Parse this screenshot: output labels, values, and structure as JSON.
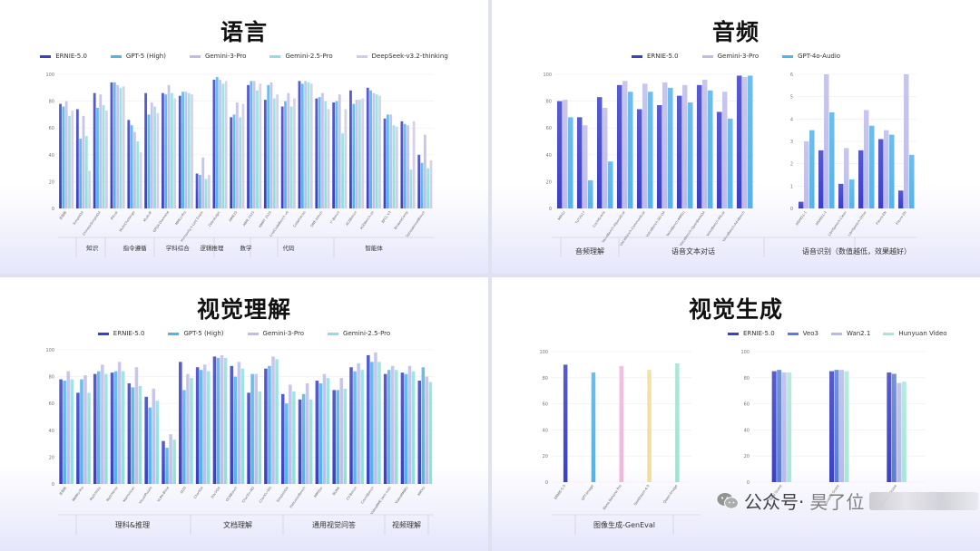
{
  "watermark": {
    "text": "公众号·",
    "trail": "昊了位",
    "icon": "wechat-icon"
  },
  "colors": {
    "ernie": "#3b3fc7",
    "gpt5": "#52b3e8",
    "gemini3": "#bfbcea",
    "gemini25": "#8fe0da",
    "deepseek": "#cfcce8",
    "gpt4o": "#55b3e8",
    "veo3": "#5a7fd2",
    "wan": "#b9b9ec",
    "hunyuan": "#a9e6d8"
  },
  "panels": {
    "language": {
      "title": "语言",
      "chart_data": {
        "type": "bar",
        "ylim": [
          0,
          100
        ],
        "yticks": [
          0,
          20,
          40,
          60,
          80,
          100
        ],
        "categories": [
          "多指标",
          "SimpleQA",
          "ChineseSimpleQA",
          "IFEval",
          "MultiChallenge",
          "Multi-IF",
          "GPQA-Diamond",
          "MMLU-Pro",
          "Humanity's Last Exam",
          "ZebraLogic",
          "AIME25",
          "AIME 2025",
          "HMMT 2025",
          "LiveCodeBench v6",
          "CodeForces",
          "SWE-bench",
          "τ²-Bench",
          "ACEBench",
          "ACEBench-zh",
          "BFCL V3",
          "BrowseComp",
          "SpreadsheetBench"
        ],
        "series": [
          {
            "name": "ERNIE-5.0",
            "color_key": "ernie",
            "values": [
              78,
              74,
              86,
              94,
              66,
              86,
              86,
              84,
              26,
              96,
              68,
              92,
              81,
              76,
              95,
              82,
              79,
              88,
              90,
              67,
              65,
              40
            ]
          },
          {
            "name": "GPT-5 (High)",
            "color_key": "gpt5",
            "values": [
              76,
              52,
              75,
              94,
              62,
              70,
              85,
              87,
              25,
              98,
              70,
              95,
              92,
              80,
              93,
              83,
              80,
              78,
              88,
              70,
              63,
              34
            ]
          },
          {
            "name": "Gemini-3-Pro",
            "color_key": "gemini3",
            "values": [
              80,
              69,
              85,
              92,
              57,
              79,
              92,
              87,
              38,
              96,
              79,
              95,
              94,
              86,
              95,
              86,
              85,
              81,
              86,
              70,
              62,
              55
            ]
          },
          {
            "name": "Gemini-2.5-Pro",
            "color_key": "gemini25",
            "values": [
              69,
              54,
              77,
              90,
              50,
              76,
              86,
              86,
              22,
              93,
              68,
              88,
              82,
              76,
              94,
              80,
              56,
              81,
              85,
              62,
              29,
              30
            ]
          },
          {
            "name": "DeepSeek-v3.2-thinking",
            "color_key": "deepseek",
            "values": [
              73,
              28,
              73,
              91,
              42,
              71,
              82,
              85,
              25,
              95,
              78,
              93,
              85,
              82,
              93,
              74,
              74,
              82,
              84,
              61,
              65,
              36
            ]
          }
        ],
        "group_labels": [
          {
            "label": "知识",
            "from": 1,
            "to": 2
          },
          {
            "label": "指令遵循",
            "from": 3,
            "to": 5
          },
          {
            "label": "学科综合",
            "from": 6,
            "to": 7
          },
          {
            "label": "逻辑推理",
            "from": 8,
            "to": 9
          },
          {
            "label": "数学",
            "from": 10,
            "to": 11
          },
          {
            "label": "代码",
            "from": 12,
            "to": 14
          },
          {
            "label": "智能体",
            "from": 15,
            "to": 21
          }
        ]
      }
    },
    "audio": {
      "title": "音频",
      "chart_data": [
        {
          "type": "bar",
          "ylim": [
            0,
            100
          ],
          "yticks": [
            0,
            20,
            40,
            60,
            80,
            100
          ],
          "categories": [
            "MMAU",
            "TUT2017",
            "CochlScene",
            "VoiceBench-AlpacaEval",
            "VoiceBench-CommonEval",
            "VoiceBench-SD-QA",
            "VoiceBench-MMSU",
            "VoiceBench-OpenBookQA",
            "VoiceBench-IFEval",
            "VoiceBench-AdvBench"
          ],
          "series": [
            {
              "name": "ERNIE-5.0",
              "color_key": "ernie",
              "values": [
                80,
                68,
                83,
                92,
                74,
                77,
                84,
                92,
                72,
                99
              ]
            },
            {
              "name": "Gemini-3-Pro",
              "color_key": "gemini3",
              "values": [
                81,
                62,
                75,
                95,
                93,
                94,
                92,
                96,
                87,
                98
              ]
            },
            {
              "name": "GPT-4o-Audio",
              "color_key": "gpt4o",
              "values": [
                68,
                21,
                35,
                87,
                87,
                90,
                79,
                88,
                67,
                99
              ]
            }
          ]
        },
        {
          "type": "bar",
          "ylim": [
            0,
            6
          ],
          "yticks": [
            0,
            1,
            2,
            3,
            4,
            5,
            6
          ],
          "categories": [
            "AISHELL-1",
            "AISHELL-2",
            "LibriSpeech-Clean",
            "LibriSpeech-Other",
            "Fleurs-EN",
            "Fleurs-ZH"
          ],
          "series": [
            {
              "name": "ERNIE-5.0",
              "color_key": "ernie",
              "values": [
                0.3,
                2.6,
                1.1,
                2.6,
                3.1,
                0.8
              ]
            },
            {
              "name": "Gemini-3-Pro",
              "color_key": "gemini3",
              "values": [
                3.0,
                6.0,
                2.7,
                4.4,
                3.5,
                6.0
              ]
            },
            {
              "name": "GPT-4o-Audio",
              "color_key": "gpt4o",
              "values": [
                3.5,
                4.3,
                1.3,
                3.7,
                3.3,
                2.4
              ]
            }
          ]
        }
      ],
      "group_labels": [
        {
          "label": "音频理解"
        },
        {
          "label": "语音文本对话"
        },
        {
          "label": "语音识别（数值越低，效果越好）"
        }
      ]
    },
    "vision": {
      "title": "视觉理解",
      "chart_data": {
        "type": "bar",
        "ylim": [
          0,
          100
        ],
        "yticks": [
          0,
          20,
          40,
          60,
          80,
          100
        ],
        "categories": [
          "多指标",
          "MMMU-Pro",
          "MathVista",
          "MathVerse",
          "MathVision",
          "VisualPuzzle",
          "VLMs-Blind",
          "AI2D",
          "ChartQA",
          "DocVQA",
          "OCRBench",
          "CharXiv-RQ",
          "CharXiv-DQ",
          "SimpleVQA",
          "HallusionBench",
          "MMStar",
          "BLINK",
          "CV-Bench",
          "CountBench",
          "VideoMME (w/o sub)",
          "VideoMMMU",
          "MMVU"
        ],
        "series": [
          {
            "name": "ERNIE-5.0",
            "color_key": "ernie",
            "values": [
              78,
              68,
              82,
              83,
              75,
              65,
              32,
              91,
              87,
              95,
              88,
              68,
              86,
              67,
              63,
              77,
              70,
              87,
              96,
              82,
              83,
              77
            ]
          },
          {
            "name": "GPT-5 (High)",
            "color_key": "gpt5",
            "values": [
              77,
              78,
              84,
              84,
              72,
              57,
              27,
              70,
              85,
              94,
              80,
              82,
              88,
              60,
              67,
              75,
              70,
              84,
              91,
              85,
              82,
              87
            ]
          },
          {
            "name": "Gemini-3-Pro",
            "color_key": "gemini3",
            "values": [
              84,
              81,
              89,
              91,
              87,
              71,
              37,
              82,
              89,
              96,
              91,
              82,
              95,
              74,
              75,
              82,
              79,
              90,
              98,
              88,
              88,
              80
            ]
          },
          {
            "name": "Gemini-2.5-Pro",
            "color_key": "gemini25",
            "values": [
              78,
              68,
              82,
              84,
              73,
              62,
              33,
              79,
              84,
              94,
              86,
              69,
              93,
              69,
              63,
              79,
              71,
              85,
              91,
              85,
              84,
              76
            ]
          }
        ],
        "group_labels": [
          {
            "label": "理科&推理"
          },
          {
            "label": "文档理解"
          },
          {
            "label": "通用视觉问答"
          },
          {
            "label": "视频理解"
          }
        ]
      }
    },
    "generation": {
      "title": "视觉生成",
      "chart_data": [
        {
          "type": "bar",
          "ylim": [
            0,
            100
          ],
          "yticks": [
            0,
            20,
            40,
            60,
            80,
            100
          ],
          "categories": [
            "ERNIE-5.0",
            "GPT-Image",
            "Nano Banana Pro",
            "Seedream-4.0",
            "Qwen-Image"
          ],
          "values": [
            90,
            84,
            89,
            86,
            91
          ],
          "bar_colors": [
            "#3b3fc7",
            "#52b3e8",
            "#f2b6d9",
            "#f2dd96",
            "#9fe3d4"
          ]
        },
        {
          "type": "bar",
          "ylim": [
            0,
            100
          ],
          "yticks": [
            0,
            20,
            40,
            60,
            80,
            100
          ],
          "categories": [
            "Total Score",
            "Quality Score",
            "Semantic Score"
          ],
          "series": [
            {
              "name": "ERNIE-5.0",
              "color_key": "ernie",
              "values": [
                85,
                85,
                84
              ]
            },
            {
              "name": "Veo3",
              "color_key": "veo3",
              "values": [
                86,
                86,
                83
              ]
            },
            {
              "name": "Wan2.1",
              "color_key": "wan",
              "values": [
                84,
                86,
                76
              ]
            },
            {
              "name": "Hunyuan Video",
              "color_key": "hunyuan",
              "values": [
                84,
                85,
                77
              ]
            }
          ]
        }
      ],
      "group_labels": [
        {
          "label": "图像生成-GenEval"
        }
      ]
    }
  }
}
